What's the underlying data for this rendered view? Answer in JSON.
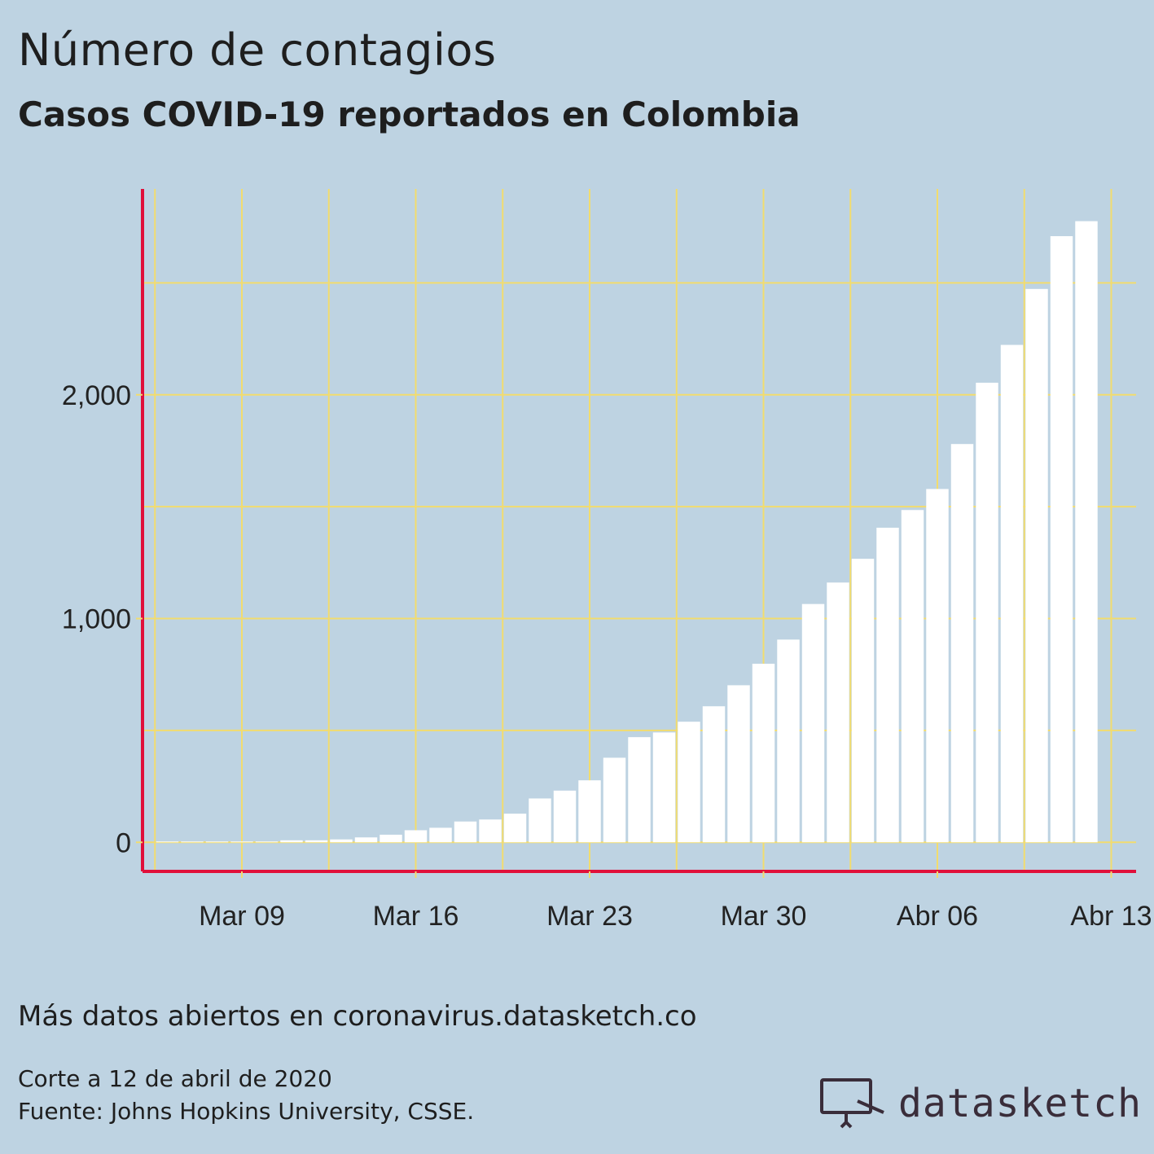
{
  "header": {
    "title": "Número de contagios",
    "subtitle": "Casos COVID-19 reportados en Colombia"
  },
  "footer": {
    "more_data": "Más datos abiertos en coronavirus.datasketch.co",
    "cutoff": "Corte a 12 de abril de 2020",
    "source": "Fuente: Johns Hopkins University, CSSE.",
    "brand": "datasketch",
    "brand_icon": "monitor-icon"
  },
  "colors": {
    "background": "#bed3e2",
    "bars": "#ffffff",
    "grid": "#f2dc6e",
    "axis": "#e0103a",
    "text": "#222222"
  },
  "chart_data": {
    "type": "bar",
    "title": "Número de contagios",
    "subtitle": "Casos COVID-19 reportados en Colombia",
    "xlabel": "",
    "ylabel": "",
    "x": [
      "2020-03-06",
      "2020-03-07",
      "2020-03-08",
      "2020-03-09",
      "2020-03-10",
      "2020-03-11",
      "2020-03-12",
      "2020-03-13",
      "2020-03-14",
      "2020-03-15",
      "2020-03-16",
      "2020-03-17",
      "2020-03-18",
      "2020-03-19",
      "2020-03-20",
      "2020-03-21",
      "2020-03-22",
      "2020-03-23",
      "2020-03-24",
      "2020-03-25",
      "2020-03-26",
      "2020-03-27",
      "2020-03-28",
      "2020-03-29",
      "2020-03-30",
      "2020-03-31",
      "2020-04-01",
      "2020-04-02",
      "2020-04-03",
      "2020-04-04",
      "2020-04-05",
      "2020-04-06",
      "2020-04-07",
      "2020-04-08",
      "2020-04-09",
      "2020-04-10",
      "2020-04-11",
      "2020-04-12"
    ],
    "values": [
      1,
      1,
      1,
      1,
      3,
      9,
      9,
      13,
      22,
      34,
      54,
      65,
      93,
      102,
      128,
      196,
      231,
      277,
      378,
      470,
      491,
      539,
      608,
      702,
      798,
      906,
      1065,
      1161,
      1267,
      1406,
      1485,
      1579,
      1780,
      2054,
      2223,
      2473,
      2709,
      2776
    ],
    "xticks": [
      {
        "date": "2020-03-09",
        "label": "Mar 09"
      },
      {
        "date": "2020-03-16",
        "label": "Mar 16"
      },
      {
        "date": "2020-03-23",
        "label": "Mar 23"
      },
      {
        "date": "2020-03-30",
        "label": "Mar 30"
      },
      {
        "date": "2020-04-06",
        "label": "Abr 06"
      },
      {
        "date": "2020-04-13",
        "label": "Abr 13"
      }
    ],
    "xlim": [
      "2020-03-05",
      "2020-04-14"
    ],
    "yticks": [
      0,
      1000,
      2000
    ],
    "ytick_labels": [
      "0",
      "1,000",
      "2,000"
    ],
    "ylim": [
      -130,
      2920
    ],
    "grid": true,
    "legend": "none"
  }
}
